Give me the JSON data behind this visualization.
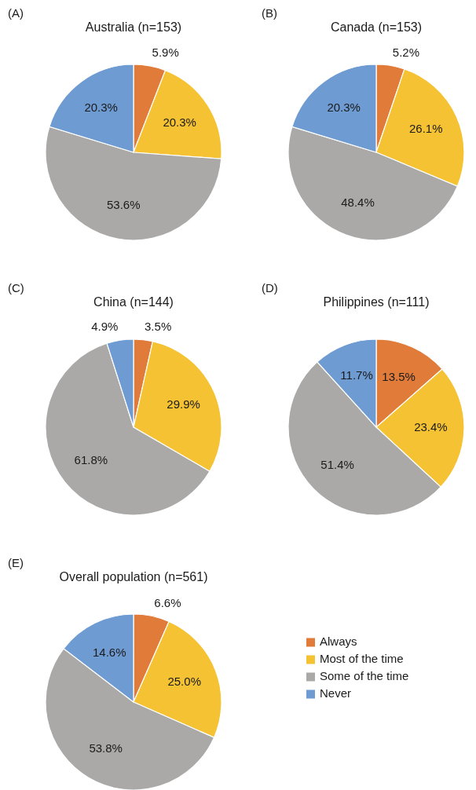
{
  "chart_data": [
    {
      "type": "pie",
      "title": "Australia (n=153)",
      "annotations": [
        "(A)"
      ],
      "categories": [
        null,
        null,
        null,
        null
      ],
      "values": [
        5.9,
        20.3,
        53.6,
        20.3
      ],
      "value_labels": [
        "5.9%",
        "20.3%",
        "53.6%",
        "20.3%"
      ],
      "colors": [
        "#e07b39",
        "#f4c232",
        "#aaa9a8",
        "#6f9bd3"
      ],
      "legend": false
    },
    {
      "type": "pie",
      "title": "Canada (n=153)",
      "annotations": [
        "(B)"
      ],
      "categories": [
        null,
        null,
        null,
        null
      ],
      "values": [
        5.2,
        26.1,
        48.4,
        20.3
      ],
      "value_labels": [
        "5.2%",
        "26.1%",
        "48.4%",
        "20.3%"
      ],
      "colors": [
        "#e07b39",
        "#f4c232",
        "#aaa9a8",
        "#6f9bd3"
      ],
      "legend": false
    },
    {
      "type": "pie",
      "title": "China (n=144)",
      "annotations": [
        "(C)"
      ],
      "categories": [
        null,
        null,
        null,
        null
      ],
      "values": [
        3.5,
        29.9,
        61.8,
        4.9
      ],
      "value_labels": [
        "3.5%",
        "29.9%",
        "61.8%",
        "4.9%"
      ],
      "colors": [
        "#e07b39",
        "#f4c232",
        "#aaa9a8",
        "#6f9bd3"
      ],
      "legend": false
    },
    {
      "type": "pie",
      "title": "Philippines (n=111)",
      "annotations": [
        "(D)"
      ],
      "categories": [
        null,
        null,
        null,
        null
      ],
      "values": [
        13.5,
        23.4,
        51.4,
        11.7
      ],
      "value_labels": [
        "13.5%",
        "23.4%",
        "51.4%",
        "11.7%"
      ],
      "colors": [
        "#e07b39",
        "#f4c232",
        "#aaa9a8",
        "#6f9bd3"
      ],
      "legend": false
    },
    {
      "type": "pie",
      "title": "Overall population (n=561)",
      "annotations": [
        "(E)"
      ],
      "categories": [
        "Always",
        "Most of the time",
        "Some of the time",
        "Never"
      ],
      "values": [
        6.6,
        25.0,
        53.8,
        14.6
      ],
      "value_labels": [
        "6.6%",
        "25.0%",
        "53.8%",
        "14.6%"
      ],
      "colors": [
        "#e07b39",
        "#f4c232",
        "#aaa9a8",
        "#6f9bd3"
      ],
      "legend": "right"
    }
  ]
}
